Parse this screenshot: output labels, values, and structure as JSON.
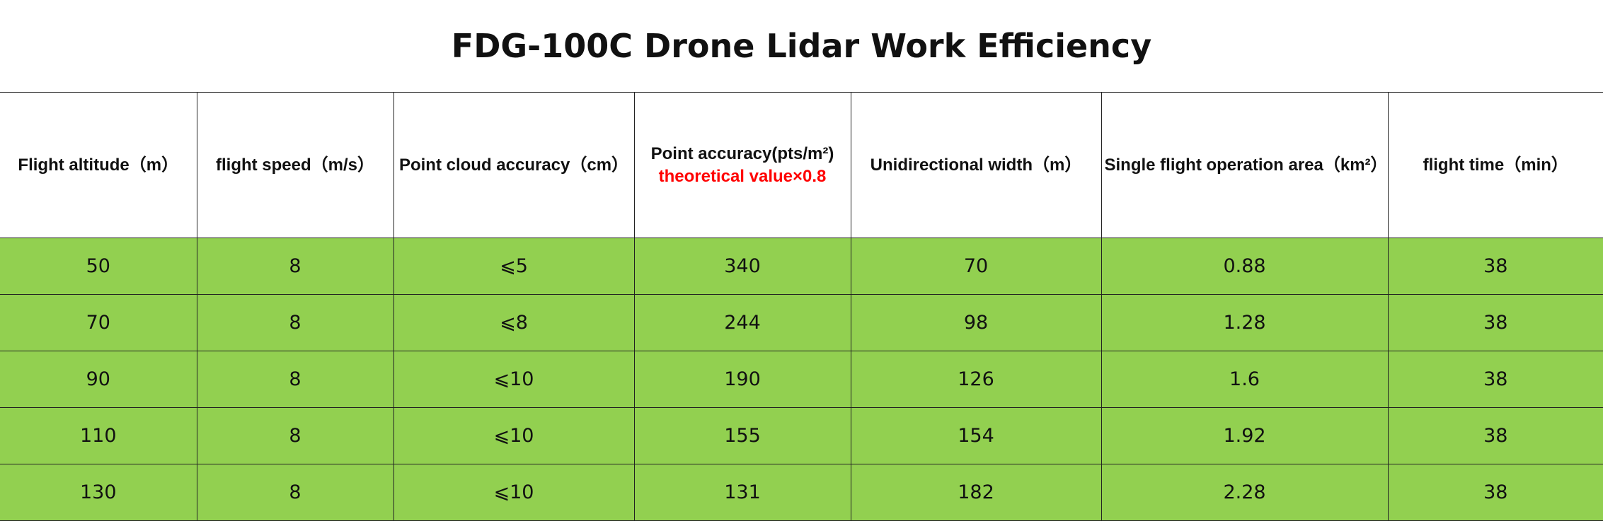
{
  "title": "FDG-100C Drone Lidar Work Efficiency",
  "colors": {
    "row_fill": "#92d050",
    "note_text": "#ff0000",
    "border": "#222222"
  },
  "headers": [
    {
      "label": "Flight altitude（m）"
    },
    {
      "label": "flight speed（m/s）"
    },
    {
      "label": "Point cloud accuracy（cm）"
    },
    {
      "label": "Point  accuracy(pts/m²)",
      "note": "theoretical value×0.8"
    },
    {
      "label": "Unidirectional width（m）"
    },
    {
      "label": "Single flight operation area（km²）"
    },
    {
      "label": "flight time（min）"
    }
  ],
  "rows": [
    [
      "50",
      "8",
      "⩽5",
      "340",
      "70",
      "0.88",
      "38"
    ],
    [
      "70",
      "8",
      "⩽8",
      "244",
      "98",
      "1.28",
      "38"
    ],
    [
      "90",
      "8",
      "⩽10",
      "190",
      "126",
      "1.6",
      "38"
    ],
    [
      "110",
      "8",
      "⩽10",
      "155",
      "154",
      "1.92",
      "38"
    ],
    [
      "130",
      "8",
      "⩽10",
      "131",
      "182",
      "2.28",
      "38"
    ]
  ]
}
